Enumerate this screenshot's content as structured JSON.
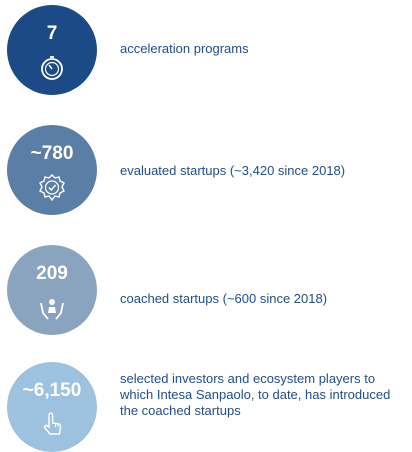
{
  "items": [
    {
      "value": "7",
      "description": "acceleration programs"
    },
    {
      "value": "~780",
      "description": "evaluated startups (~3,420 since 2018)"
    },
    {
      "value": "209",
      "description": "coached startups (~600 since 2018)"
    },
    {
      "value": "~6,150",
      "description": "selected investors and ecosystem players to which Intesa Sanpaolo, to date, has introduced the coached startups"
    }
  ]
}
